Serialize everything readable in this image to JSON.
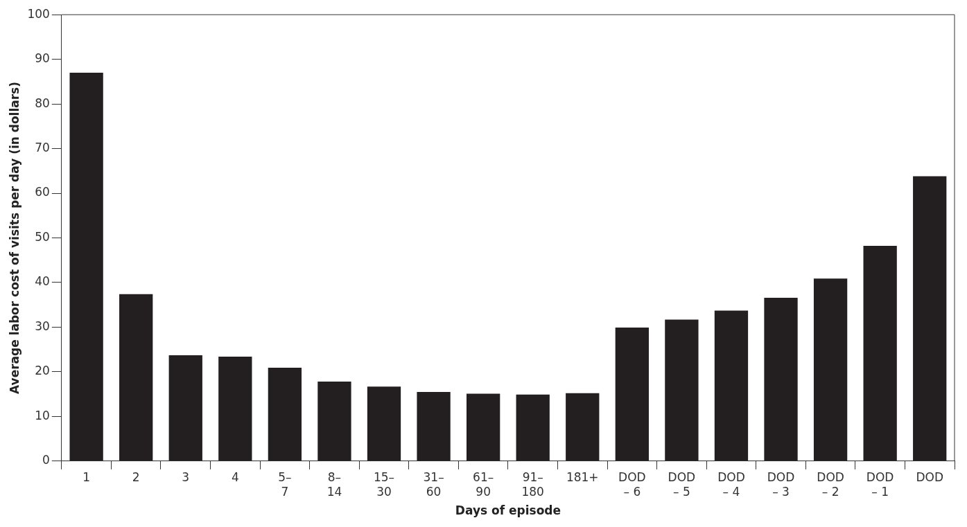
{
  "chart_data": {
    "type": "bar",
    "xlabel": "Days of episode",
    "ylabel": "Average labor cost of visits per day (in dollars)",
    "categories": [
      "1",
      "2",
      "3",
      "4",
      "5–\n7",
      "8–\n14",
      "15–\n30",
      "31–\n60",
      "61–\n90",
      "91–\n180",
      "181+",
      "DOD\n– 6",
      "DOD\n– 5",
      "DOD\n– 4",
      "DOD\n– 3",
      "DOD\n– 2",
      "DOD\n– 1",
      "DOD"
    ],
    "values": [
      87,
      37.4,
      23.7,
      23.4,
      20.9,
      17.8,
      16.7,
      15.5,
      15.1,
      14.9,
      15.2,
      29.9,
      31.7,
      33.7,
      36.6,
      40.9,
      48.2,
      63.8
    ],
    "color": "#231f20",
    "ylim": [
      0,
      100
    ],
    "yticks": [
      0,
      10,
      20,
      30,
      40,
      50,
      60,
      70,
      80,
      90,
      100
    ],
    "grid": false,
    "legend": false
  }
}
